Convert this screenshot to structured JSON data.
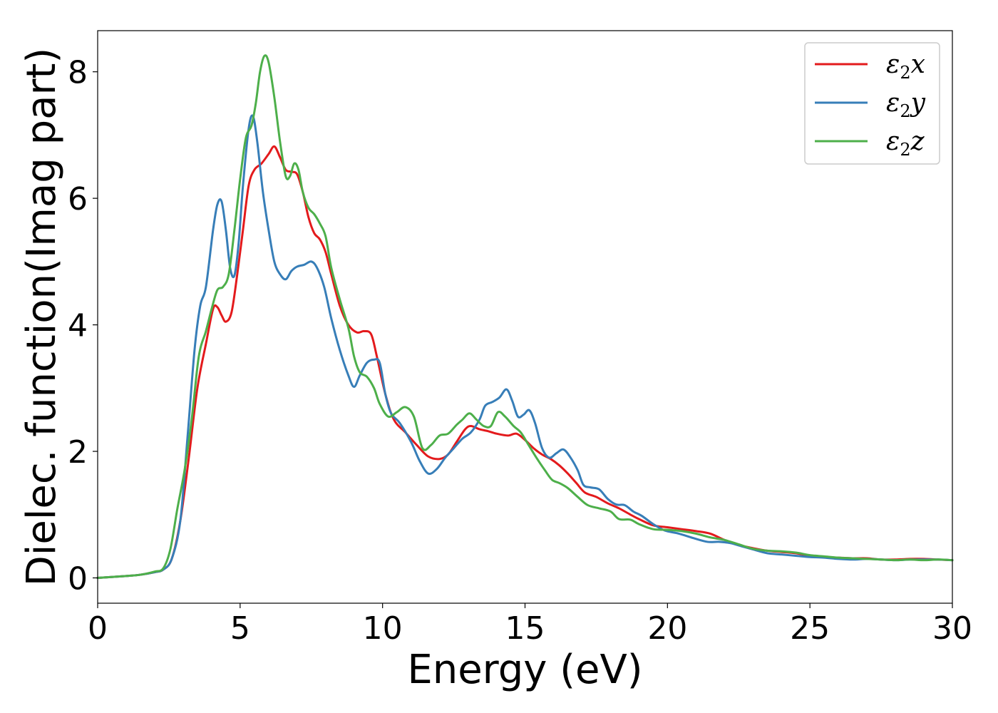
{
  "chart_data": {
    "type": "line",
    "title": "",
    "xlabel": "Energy (eV)",
    "ylabel": "Dielec. function(Imag part)",
    "xlim": [
      0,
      30
    ],
    "ylim": [
      -0.4,
      8.65
    ],
    "xticks": [
      0,
      5,
      10,
      15,
      20,
      25,
      30
    ],
    "yticks": [
      0,
      2,
      4,
      6,
      8
    ],
    "grid": false,
    "legend_position": "top-right",
    "series": [
      {
        "name": "ε2x",
        "legend": {
          "symbol": "ε",
          "sub": "2",
          "suffix": "x"
        },
        "color": "#e31a1c",
        "points": [
          [
            0,
            0
          ],
          [
            1,
            0.03
          ],
          [
            1.5,
            0.05
          ],
          [
            2,
            0.09
          ],
          [
            2.3,
            0.13
          ],
          [
            2.6,
            0.3
          ],
          [
            2.9,
            0.9
          ],
          [
            3.2,
            1.9
          ],
          [
            3.5,
            3.0
          ],
          [
            3.8,
            3.7
          ],
          [
            4.05,
            4.25
          ],
          [
            4.2,
            4.28
          ],
          [
            4.35,
            4.15
          ],
          [
            4.5,
            4.05
          ],
          [
            4.7,
            4.2
          ],
          [
            4.9,
            4.8
          ],
          [
            5.1,
            5.5
          ],
          [
            5.3,
            6.2
          ],
          [
            5.5,
            6.45
          ],
          [
            5.75,
            6.55
          ],
          [
            6.0,
            6.7
          ],
          [
            6.2,
            6.82
          ],
          [
            6.4,
            6.65
          ],
          [
            6.6,
            6.45
          ],
          [
            6.8,
            6.42
          ],
          [
            7.0,
            6.38
          ],
          [
            7.2,
            6.1
          ],
          [
            7.4,
            5.7
          ],
          [
            7.6,
            5.45
          ],
          [
            7.8,
            5.35
          ],
          [
            8.0,
            5.15
          ],
          [
            8.2,
            4.8
          ],
          [
            8.5,
            4.3
          ],
          [
            8.8,
            4.0
          ],
          [
            9.1,
            3.88
          ],
          [
            9.35,
            3.9
          ],
          [
            9.6,
            3.85
          ],
          [
            9.8,
            3.5
          ],
          [
            10.1,
            2.9
          ],
          [
            10.4,
            2.5
          ],
          [
            10.8,
            2.3
          ],
          [
            11.2,
            2.1
          ],
          [
            11.6,
            1.92
          ],
          [
            12.0,
            1.88
          ],
          [
            12.3,
            1.95
          ],
          [
            12.6,
            2.15
          ],
          [
            12.9,
            2.35
          ],
          [
            13.1,
            2.4
          ],
          [
            13.4,
            2.35
          ],
          [
            13.7,
            2.32
          ],
          [
            14.0,
            2.28
          ],
          [
            14.4,
            2.25
          ],
          [
            14.7,
            2.28
          ],
          [
            15.0,
            2.18
          ],
          [
            15.3,
            2.05
          ],
          [
            15.6,
            1.95
          ],
          [
            15.9,
            1.88
          ],
          [
            16.2,
            1.78
          ],
          [
            16.5,
            1.65
          ],
          [
            16.8,
            1.5
          ],
          [
            17.1,
            1.35
          ],
          [
            17.5,
            1.28
          ],
          [
            17.9,
            1.18
          ],
          [
            18.3,
            1.1
          ],
          [
            18.7,
            1.0
          ],
          [
            19.0,
            0.93
          ],
          [
            19.5,
            0.83
          ],
          [
            20.0,
            0.8
          ],
          [
            20.5,
            0.77
          ],
          [
            21.0,
            0.74
          ],
          [
            21.5,
            0.7
          ],
          [
            22.0,
            0.6
          ],
          [
            22.5,
            0.52
          ],
          [
            23.0,
            0.47
          ],
          [
            23.5,
            0.43
          ],
          [
            24.0,
            0.41
          ],
          [
            24.5,
            0.39
          ],
          [
            25.0,
            0.35
          ],
          [
            25.5,
            0.33
          ],
          [
            26.0,
            0.32
          ],
          [
            26.5,
            0.31
          ],
          [
            27.0,
            0.31
          ],
          [
            27.5,
            0.29
          ],
          [
            28.0,
            0.29
          ],
          [
            28.5,
            0.3
          ],
          [
            29.0,
            0.3
          ],
          [
            29.5,
            0.29
          ],
          [
            30,
            0.28
          ]
        ]
      },
      {
        "name": "ε2y",
        "legend": {
          "symbol": "ε",
          "sub": "2",
          "suffix": "y"
        },
        "color": "#377eb8",
        "points": [
          [
            0,
            0
          ],
          [
            1,
            0.03
          ],
          [
            1.5,
            0.05
          ],
          [
            2,
            0.09
          ],
          [
            2.3,
            0.13
          ],
          [
            2.6,
            0.3
          ],
          [
            2.9,
            0.9
          ],
          [
            3.15,
            2.2
          ],
          [
            3.4,
            3.6
          ],
          [
            3.6,
            4.3
          ],
          [
            3.8,
            4.6
          ],
          [
            4.05,
            5.5
          ],
          [
            4.2,
            5.9
          ],
          [
            4.35,
            5.95
          ],
          [
            4.5,
            5.5
          ],
          [
            4.65,
            4.9
          ],
          [
            4.8,
            4.78
          ],
          [
            4.95,
            5.3
          ],
          [
            5.1,
            6.2
          ],
          [
            5.3,
            7.1
          ],
          [
            5.45,
            7.3
          ],
          [
            5.6,
            6.9
          ],
          [
            5.8,
            6.1
          ],
          [
            6.0,
            5.5
          ],
          [
            6.2,
            5.0
          ],
          [
            6.4,
            4.8
          ],
          [
            6.6,
            4.72
          ],
          [
            6.8,
            4.85
          ],
          [
            7.0,
            4.92
          ],
          [
            7.25,
            4.95
          ],
          [
            7.5,
            5.0
          ],
          [
            7.7,
            4.9
          ],
          [
            7.95,
            4.6
          ],
          [
            8.2,
            4.1
          ],
          [
            8.5,
            3.6
          ],
          [
            8.8,
            3.2
          ],
          [
            9.0,
            3.02
          ],
          [
            9.2,
            3.2
          ],
          [
            9.45,
            3.4
          ],
          [
            9.7,
            3.45
          ],
          [
            9.9,
            3.4
          ],
          [
            10.1,
            2.9
          ],
          [
            10.3,
            2.6
          ],
          [
            10.6,
            2.45
          ],
          [
            11.0,
            2.15
          ],
          [
            11.3,
            1.85
          ],
          [
            11.6,
            1.65
          ],
          [
            11.9,
            1.72
          ],
          [
            12.2,
            1.9
          ],
          [
            12.5,
            2.05
          ],
          [
            12.8,
            2.2
          ],
          [
            13.1,
            2.3
          ],
          [
            13.4,
            2.5
          ],
          [
            13.6,
            2.72
          ],
          [
            13.85,
            2.78
          ],
          [
            14.1,
            2.85
          ],
          [
            14.35,
            2.98
          ],
          [
            14.55,
            2.8
          ],
          [
            14.75,
            2.55
          ],
          [
            14.95,
            2.58
          ],
          [
            15.15,
            2.65
          ],
          [
            15.35,
            2.45
          ],
          [
            15.6,
            2.05
          ],
          [
            15.85,
            1.9
          ],
          [
            16.1,
            1.97
          ],
          [
            16.35,
            2.03
          ],
          [
            16.6,
            1.9
          ],
          [
            16.85,
            1.7
          ],
          [
            17.05,
            1.47
          ],
          [
            17.3,
            1.43
          ],
          [
            17.6,
            1.4
          ],
          [
            17.9,
            1.25
          ],
          [
            18.2,
            1.16
          ],
          [
            18.5,
            1.15
          ],
          [
            18.8,
            1.05
          ],
          [
            19.1,
            0.98
          ],
          [
            19.5,
            0.85
          ],
          [
            19.9,
            0.75
          ],
          [
            20.4,
            0.7
          ],
          [
            20.9,
            0.63
          ],
          [
            21.4,
            0.57
          ],
          [
            21.8,
            0.57
          ],
          [
            22.2,
            0.55
          ],
          [
            22.6,
            0.5
          ],
          [
            23.0,
            0.45
          ],
          [
            23.5,
            0.39
          ],
          [
            24.0,
            0.37
          ],
          [
            24.5,
            0.35
          ],
          [
            25.0,
            0.33
          ],
          [
            25.5,
            0.32
          ],
          [
            26.0,
            0.3
          ],
          [
            26.5,
            0.29
          ],
          [
            27.0,
            0.3
          ],
          [
            27.5,
            0.29
          ],
          [
            28.0,
            0.28
          ],
          [
            28.5,
            0.29
          ],
          [
            29.0,
            0.29
          ],
          [
            29.5,
            0.29
          ],
          [
            30,
            0.28
          ]
        ]
      },
      {
        "name": "ε2z",
        "legend": {
          "symbol": "ε",
          "sub": "2",
          "suffix": "z"
        },
        "color": "#4daf4a",
        "points": [
          [
            0,
            0
          ],
          [
            1,
            0.03
          ],
          [
            1.5,
            0.05
          ],
          [
            2,
            0.1
          ],
          [
            2.3,
            0.15
          ],
          [
            2.55,
            0.45
          ],
          [
            2.8,
            1.1
          ],
          [
            3.05,
            1.7
          ],
          [
            3.3,
            2.5
          ],
          [
            3.55,
            3.5
          ],
          [
            3.8,
            3.9
          ],
          [
            4.0,
            4.25
          ],
          [
            4.2,
            4.55
          ],
          [
            4.4,
            4.6
          ],
          [
            4.6,
            4.8
          ],
          [
            4.8,
            5.5
          ],
          [
            5.0,
            6.3
          ],
          [
            5.2,
            6.95
          ],
          [
            5.4,
            7.15
          ],
          [
            5.55,
            7.5
          ],
          [
            5.7,
            8.0
          ],
          [
            5.85,
            8.25
          ],
          [
            6.0,
            8.15
          ],
          [
            6.2,
            7.6
          ],
          [
            6.4,
            6.9
          ],
          [
            6.6,
            6.35
          ],
          [
            6.75,
            6.35
          ],
          [
            6.9,
            6.55
          ],
          [
            7.05,
            6.45
          ],
          [
            7.2,
            6.1
          ],
          [
            7.4,
            5.85
          ],
          [
            7.6,
            5.75
          ],
          [
            7.8,
            5.6
          ],
          [
            8.0,
            5.4
          ],
          [
            8.2,
            4.9
          ],
          [
            8.5,
            4.4
          ],
          [
            8.8,
            3.95
          ],
          [
            9.0,
            3.5
          ],
          [
            9.2,
            3.25
          ],
          [
            9.45,
            3.18
          ],
          [
            9.7,
            3.0
          ],
          [
            9.9,
            2.75
          ],
          [
            10.2,
            2.55
          ],
          [
            10.5,
            2.62
          ],
          [
            10.8,
            2.7
          ],
          [
            11.1,
            2.55
          ],
          [
            11.4,
            2.05
          ],
          [
            11.7,
            2.1
          ],
          [
            12.0,
            2.25
          ],
          [
            12.3,
            2.28
          ],
          [
            12.6,
            2.42
          ],
          [
            12.8,
            2.5
          ],
          [
            13.05,
            2.6
          ],
          [
            13.3,
            2.5
          ],
          [
            13.55,
            2.4
          ],
          [
            13.8,
            2.4
          ],
          [
            14.05,
            2.62
          ],
          [
            14.3,
            2.55
          ],
          [
            14.6,
            2.4
          ],
          [
            14.85,
            2.3
          ],
          [
            15.1,
            2.12
          ],
          [
            15.4,
            1.9
          ],
          [
            15.7,
            1.7
          ],
          [
            15.95,
            1.55
          ],
          [
            16.2,
            1.5
          ],
          [
            16.5,
            1.42
          ],
          [
            16.85,
            1.28
          ],
          [
            17.2,
            1.15
          ],
          [
            17.6,
            1.1
          ],
          [
            18.0,
            1.05
          ],
          [
            18.3,
            0.93
          ],
          [
            18.7,
            0.92
          ],
          [
            19.0,
            0.85
          ],
          [
            19.5,
            0.77
          ],
          [
            20.0,
            0.76
          ],
          [
            20.5,
            0.74
          ],
          [
            21.0,
            0.7
          ],
          [
            21.5,
            0.64
          ],
          [
            22.0,
            0.6
          ],
          [
            22.5,
            0.53
          ],
          [
            23.0,
            0.46
          ],
          [
            23.5,
            0.43
          ],
          [
            24.0,
            0.42
          ],
          [
            24.5,
            0.4
          ],
          [
            25.0,
            0.36
          ],
          [
            25.5,
            0.34
          ],
          [
            26.0,
            0.32
          ],
          [
            26.5,
            0.31
          ],
          [
            27.0,
            0.3
          ],
          [
            27.5,
            0.29
          ],
          [
            28.0,
            0.28
          ],
          [
            28.5,
            0.29
          ],
          [
            29.0,
            0.28
          ],
          [
            29.5,
            0.29
          ],
          [
            30,
            0.28
          ]
        ]
      }
    ]
  }
}
